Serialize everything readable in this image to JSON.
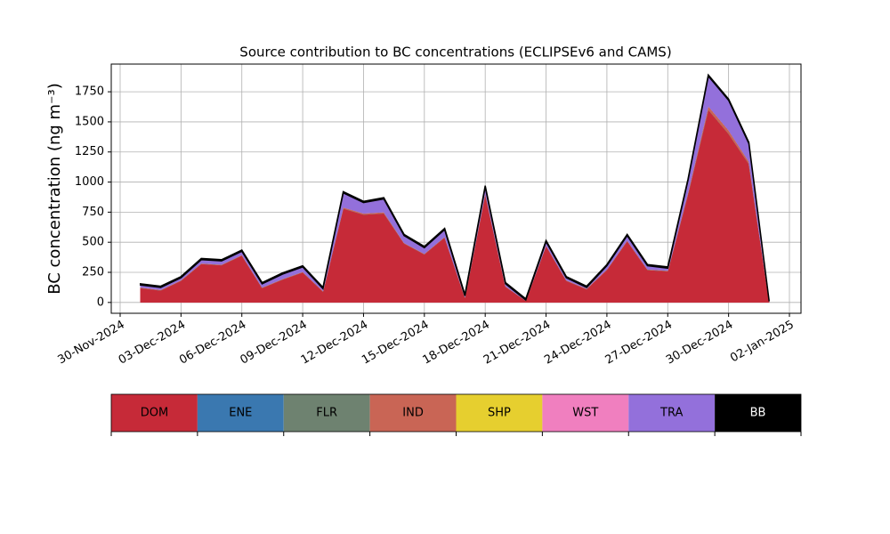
{
  "chart_data": {
    "type": "stacked_area",
    "title": "Source contribution to BC concentrations (ECLIPSEv6 and CAMS)",
    "y_label": "BC concentration (ng m⁻³)",
    "x": [
      "2024-12-01",
      "2024-12-02",
      "2024-12-03",
      "2024-12-04",
      "2024-12-05",
      "2024-12-06",
      "2024-12-07",
      "2024-12-08",
      "2024-12-09",
      "2024-12-10",
      "2024-12-11",
      "2024-12-12",
      "2024-12-13",
      "2024-12-14",
      "2024-12-15",
      "2024-12-16",
      "2024-12-17",
      "2024-12-18",
      "2024-12-19",
      "2024-12-20",
      "2024-12-21",
      "2024-12-22",
      "2024-12-23",
      "2024-12-24",
      "2024-12-25",
      "2024-12-26",
      "2024-12-27",
      "2024-12-28",
      "2024-12-29",
      "2024-12-30",
      "2024-12-31",
      "2025-01-01"
    ],
    "series": [
      {
        "name": "DOM",
        "color": "#c62a38",
        "text_color": "#000000",
        "values": [
          120,
          100,
          180,
          320,
          310,
          390,
          120,
          190,
          250,
          90,
          780,
          730,
          740,
          490,
          400,
          540,
          40,
          900,
          130,
          15,
          470,
          180,
          110,
          270,
          510,
          270,
          260,
          900,
          1600,
          1400,
          1150,
          8
        ]
      },
      {
        "name": "ENE",
        "color": "#3a78b0",
        "text_color": "#000000",
        "values": [
          0,
          0,
          0,
          0,
          0,
          0,
          0,
          0,
          0,
          0,
          0,
          0,
          0,
          0,
          0,
          0,
          0,
          0,
          0,
          0,
          0,
          0,
          0,
          0,
          0,
          0,
          0,
          0,
          0,
          0,
          0,
          0
        ]
      },
      {
        "name": "FLR",
        "color": "#6e8270",
        "text_color": "#000000",
        "values": [
          0,
          0,
          0,
          0,
          0,
          0,
          0,
          0,
          0,
          0,
          0,
          0,
          0,
          0,
          0,
          0,
          0,
          0,
          0,
          0,
          0,
          0,
          0,
          0,
          0,
          0,
          0,
          0,
          0,
          0,
          0,
          0
        ]
      },
      {
        "name": "IND",
        "color": "#c96555",
        "text_color": "#000000",
        "values": [
          5,
          5,
          5,
          5,
          5,
          5,
          5,
          5,
          5,
          5,
          10,
          10,
          10,
          5,
          5,
          5,
          5,
          10,
          5,
          0,
          5,
          5,
          5,
          5,
          5,
          5,
          5,
          15,
          30,
          30,
          20,
          0
        ]
      },
      {
        "name": "SHP",
        "color": "#e6cf2f",
        "text_color": "#000000",
        "values": [
          0,
          0,
          0,
          0,
          0,
          0,
          0,
          0,
          0,
          0,
          0,
          0,
          0,
          0,
          0,
          0,
          0,
          0,
          0,
          0,
          0,
          0,
          0,
          0,
          0,
          0,
          0,
          0,
          0,
          0,
          0,
          0
        ]
      },
      {
        "name": "WST",
        "color": "#f07fbf",
        "text_color": "#000000",
        "values": [
          0,
          0,
          0,
          0,
          0,
          0,
          0,
          0,
          0,
          0,
          0,
          0,
          0,
          0,
          0,
          0,
          0,
          0,
          0,
          0,
          0,
          0,
          0,
          0,
          0,
          0,
          0,
          0,
          0,
          0,
          0,
          0
        ]
      },
      {
        "name": "TRA",
        "color": "#9370db",
        "text_color": "#000000",
        "values": [
          20,
          20,
          20,
          30,
          30,
          30,
          30,
          40,
          40,
          20,
          120,
          90,
          110,
          60,
          50,
          60,
          10,
          50,
          20,
          5,
          30,
          20,
          10,
          30,
          40,
          30,
          20,
          100,
          250,
          250,
          150,
          2
        ]
      },
      {
        "name": "BB",
        "color": "#000000",
        "text_color": "#ffffff",
        "values": [
          10,
          10,
          10,
          10,
          10,
          10,
          10,
          10,
          10,
          10,
          10,
          10,
          10,
          10,
          10,
          10,
          10,
          10,
          10,
          10,
          10,
          10,
          10,
          10,
          10,
          10,
          10,
          10,
          10,
          10,
          10,
          2
        ]
      }
    ],
    "xticks": [
      {
        "value": "2024-11-30",
        "label": "30-Nov-2024"
      },
      {
        "value": "2024-12-03",
        "label": "03-Dec-2024"
      },
      {
        "value": "2024-12-06",
        "label": "06-Dec-2024"
      },
      {
        "value": "2024-12-09",
        "label": "09-Dec-2024"
      },
      {
        "value": "2024-12-12",
        "label": "12-Dec-2024"
      },
      {
        "value": "2024-12-15",
        "label": "15-Dec-2024"
      },
      {
        "value": "2024-12-18",
        "label": "18-Dec-2024"
      },
      {
        "value": "2024-12-21",
        "label": "21-Dec-2024"
      },
      {
        "value": "2024-12-24",
        "label": "24-Dec-2024"
      },
      {
        "value": "2024-12-27",
        "label": "27-Dec-2024"
      },
      {
        "value": "2024-12-30",
        "label": "30-Dec-2024"
      },
      {
        "value": "2025-01-02",
        "label": "02-Jan-2025"
      }
    ],
    "ylim": [
      -90,
      1980
    ],
    "yticks": [
      0,
      250,
      500,
      750,
      1000,
      1250,
      1500,
      1750
    ],
    "grid": true
  }
}
